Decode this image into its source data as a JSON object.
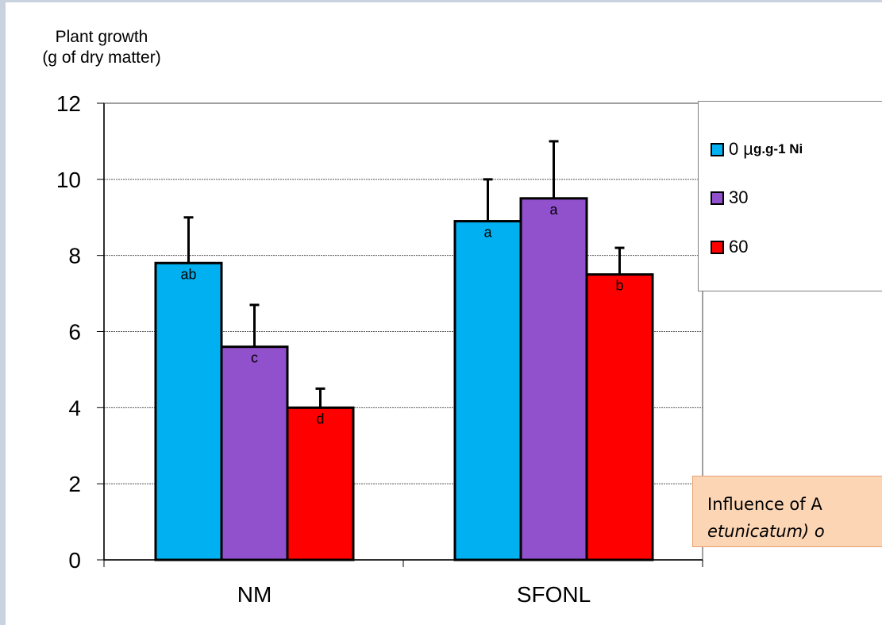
{
  "chart_data": {
    "type": "bar",
    "title": "",
    "ylabel": [
      "Plant growth",
      "(g of dry matter)"
    ],
    "xlabel": "",
    "ylim": [
      0,
      12
    ],
    "yticks": [
      "0",
      "2",
      "4",
      "6",
      "8",
      "10",
      "12"
    ],
    "grid": true,
    "legend_placement": "top-right",
    "categories": [
      "NM",
      "SFONL"
    ],
    "series": [
      {
        "name": "0 µg.g-1 Ni",
        "color": "#00b0f0",
        "values": [
          7.8,
          8.9
        ],
        "errors": [
          1.2,
          1.1
        ],
        "labels": [
          "ab",
          "a"
        ]
      },
      {
        "name": "30",
        "color": "#9150cc",
        "values": [
          5.6,
          9.5
        ],
        "errors": [
          1.1,
          1.5
        ],
        "labels": [
          "c",
          "a"
        ]
      },
      {
        "name": "60",
        "color": "#ff0000",
        "values": [
          4.0,
          7.5
        ],
        "errors": [
          0.5,
          0.7
        ],
        "labels": [
          "d",
          "b"
        ]
      }
    ]
  },
  "legend": {
    "items": [
      {
        "value": "0",
        "mu": "µ",
        "unit": "g.g-1 Ni",
        "color": "#00b0f0"
      },
      {
        "value": "30",
        "mu": "",
        "unit": "",
        "color": "#9150cc"
      },
      {
        "value": "60",
        "mu": "",
        "unit": "",
        "color": "#ff0000"
      }
    ]
  },
  "caption": {
    "line1": "Influence of A",
    "line2": "etunicatum) o"
  }
}
